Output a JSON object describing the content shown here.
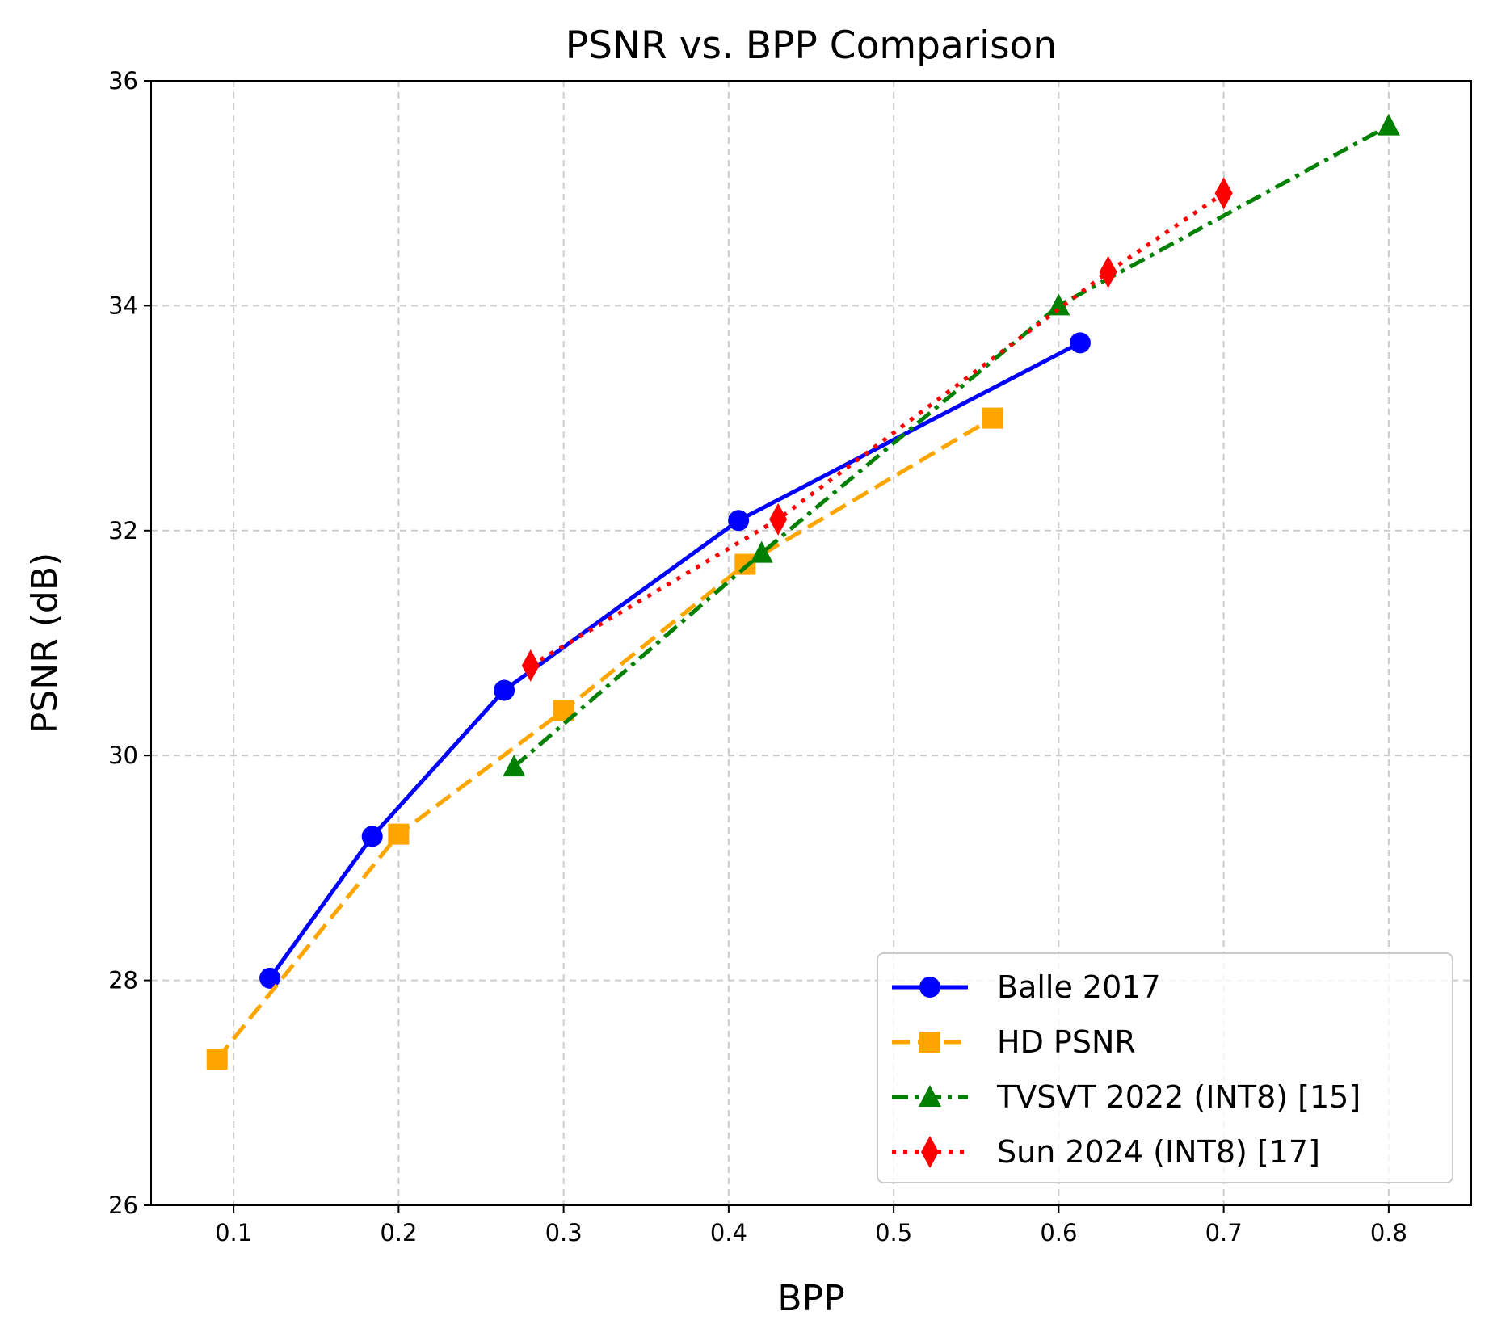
{
  "chart_data": {
    "type": "line",
    "title": "PSNR vs. BPP Comparison",
    "xlabel": "BPP",
    "ylabel": "PSNR (dB)",
    "xlim": [
      0.05,
      0.85
    ],
    "ylim": [
      26,
      36
    ],
    "xticks": [
      0.1,
      0.2,
      0.3,
      0.4,
      0.5,
      0.6,
      0.7,
      0.8
    ],
    "xtick_labels": [
      "0.1",
      "0.2",
      "0.3",
      "0.4",
      "0.5",
      "0.6",
      "0.7",
      "0.8"
    ],
    "yticks": [
      26,
      28,
      30,
      32,
      34,
      36
    ],
    "ytick_labels": [
      "26",
      "28",
      "30",
      "32",
      "34",
      "36"
    ],
    "grid": true,
    "legend_position": "lower-right",
    "series": [
      {
        "name": "Balle 2017",
        "color": "#0000ff",
        "line_style": "solid",
        "marker": "circle",
        "x": [
          0.122,
          0.184,
          0.264,
          0.406,
          0.613
        ],
        "y": [
          28.02,
          29.28,
          30.58,
          32.09,
          33.67
        ]
      },
      {
        "name": "HD PSNR",
        "color": "#ffa500",
        "line_style": "dashed",
        "marker": "square",
        "x": [
          0.09,
          0.2,
          0.3,
          0.41,
          0.56
        ],
        "y": [
          27.3,
          29.3,
          30.4,
          31.7,
          33.0
        ]
      },
      {
        "name": "TVSVT 2022 (INT8) [15]",
        "color": "#008000",
        "line_style": "dashdot",
        "marker": "triangle",
        "x": [
          0.27,
          0.42,
          0.6,
          0.8
        ],
        "y": [
          29.9,
          31.8,
          34.0,
          35.6
        ]
      },
      {
        "name": "Sun 2024 (INT8) [17]",
        "color": "#ff0000",
        "line_style": "dotted",
        "marker": "diamond",
        "x": [
          0.28,
          0.43,
          0.63,
          0.7
        ],
        "y": [
          30.8,
          32.1,
          34.3,
          35.0
        ]
      }
    ]
  }
}
